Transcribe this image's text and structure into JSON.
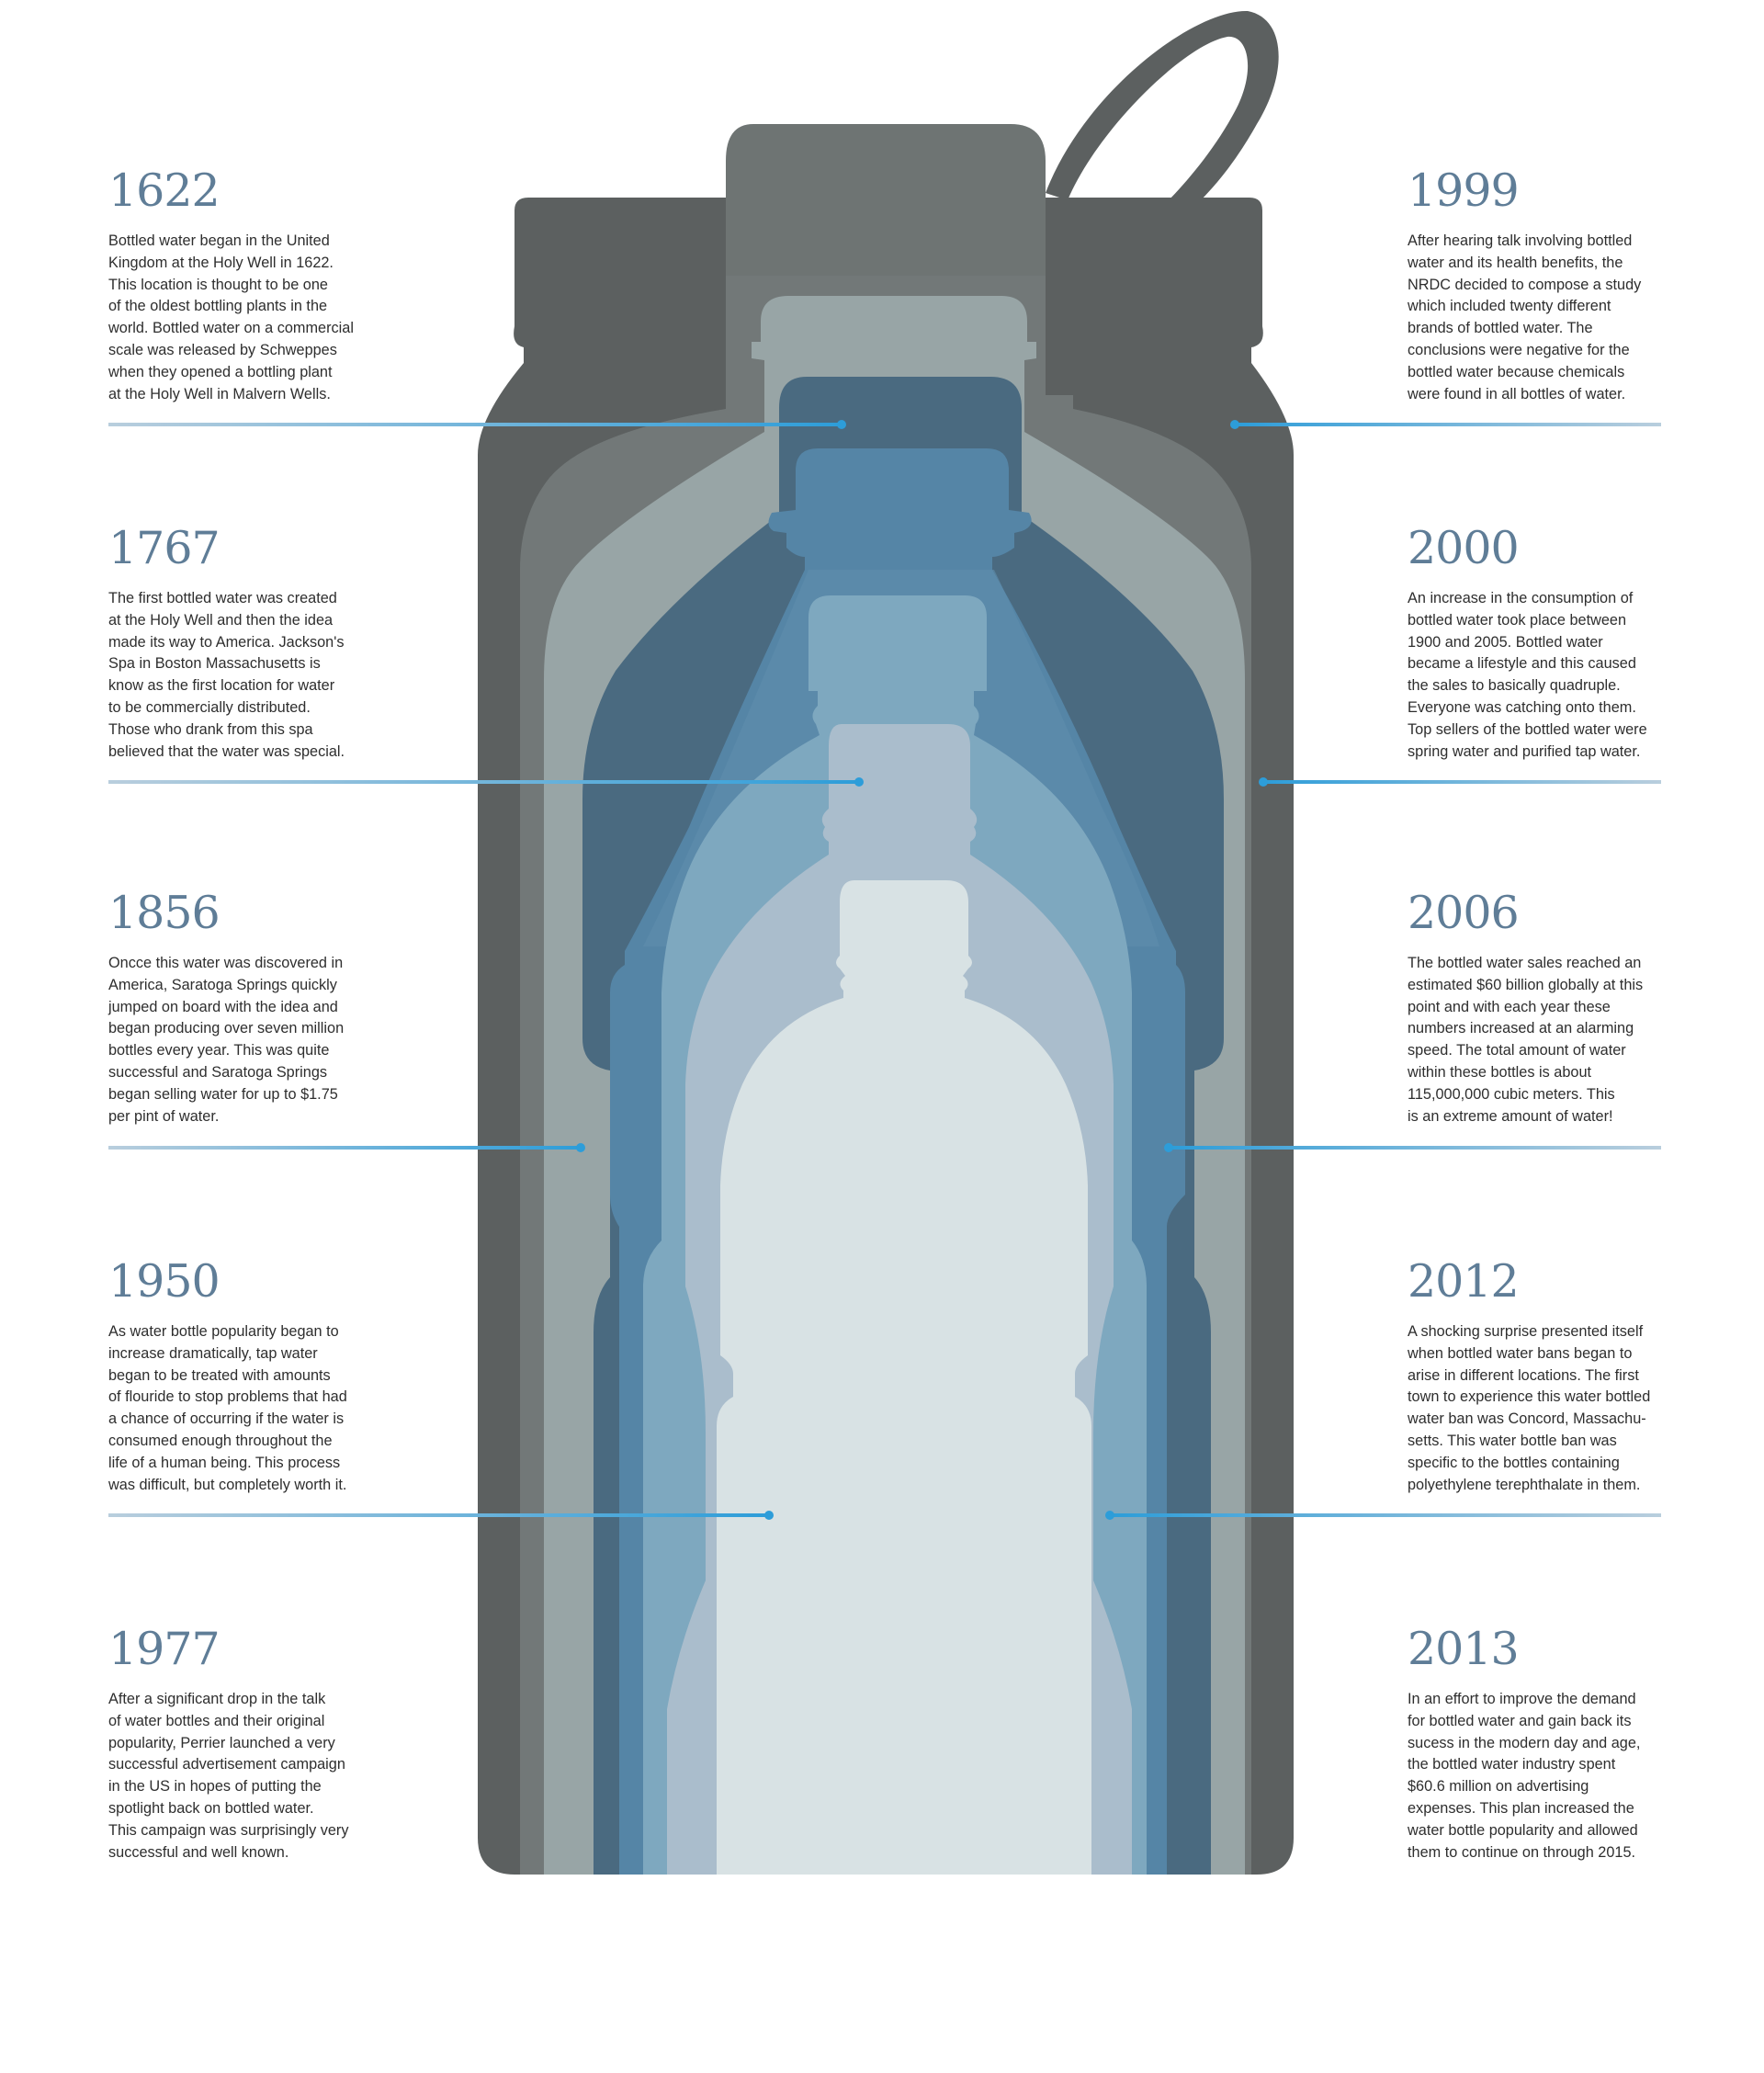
{
  "colors": {
    "year_text": "#5f7d97",
    "body_text": "#2e2e2e",
    "connector_line": "#b9cedd",
    "connector_dot": "#2d9dd9",
    "bottle_layers": [
      "#5c6060",
      "#727878",
      "#98a5a6",
      "#4a6a80",
      "#5585a6",
      "#7ea8bf",
      "#aabdcc",
      "#d8e2e4"
    ]
  },
  "left_entries": [
    {
      "year": "1622",
      "text": "Bottled water began in the United\nKingdom at the Holy Well in 1622.\nThis location is thought to be one\nof the oldest bottling plants in the\nworld. Bottled water on a commercial\nscale was released by Schweppes\nwhen they opened a bottling plant\nat the Holy Well in Malvern Wells."
    },
    {
      "year": "1767",
      "text": "The first bottled water was created\nat the Holy Well and then the idea\nmade its way to America. Jackson's\nSpa in Boston Massachusetts is\nknow as the first location for water\nto be commercially distributed.\nThose who drank from this spa\nbelieved that the water was special."
    },
    {
      "year": "1856",
      "text": "Oncce this water was discovered in\nAmerica, Saratoga Springs quickly\njumped on board with the idea and\nbegan producing over seven million\nbottles every year. This was quite\nsuccessful and Saratoga Springs\nbegan selling water for up to $1.75\nper pint of water."
    },
    {
      "year": "1950",
      "text": "As water bottle popularity began to\nincrease dramatically, tap water\nbegan to be treated with amounts\nof flouride to stop problems that had\na chance of occurring if the water is\nconsumed enough throughout the\nlife of a human being. This process\nwas difficult, but completely worth it."
    },
    {
      "year": "1977",
      "text": "After a significant drop in the talk\nof water bottles and their original\npopularity, Perrier launched a very\nsuccessful advertisement campaign\nin the US in hopes of putting the\nspotlight back on bottled water.\nThis campaign was surprisingly very\nsuccessful and well known."
    }
  ],
  "right_entries": [
    {
      "year": "1999",
      "text": "After hearing talk involving bottled\nwater and its health benefits, the\nNRDC decided to compose a study\nwhich included twenty different\nbrands of bottled water. The\nconclusions were negative for the\nbottled water because chemicals\nwere found in all bottles of water."
    },
    {
      "year": "2000",
      "text": "An increase in the consumption of\nbottled water took place between\n1900 and 2005. Bottled water\nbecame a lifestyle and this caused\nthe sales to basically quadruple.\nEveryone was catching onto them.\nTop sellers of the bottled water were\nspring water and purified tap water."
    },
    {
      "year": "2006",
      "text": "The bottled water sales reached an\nestimated $60 billion globally at this\npoint and with each year these\nnumbers increased at an alarming\nspeed. The total amount of water\nwithin these bottles is about\n115,000,000 cubic meters. This\nis an extreme amount of water!"
    },
    {
      "year": "2012",
      "text": "A shocking surprise presented itself\nwhen bottled water bans began to\narise in different locations. The first\ntown to experience this water bottled\nwater ban was Concord, Massachu-\nsetts. This water bottle ban was\nspecific to the bottles containing\npolyethylene terephthalate in them."
    },
    {
      "year": "2013",
      "text": "In an effort to improve the demand\nfor bottled water and gain back its\nsucess in the modern day and age,\nthe bottled water industry spent\n$60.6 million on advertising\nexpenses. This plan increased the\nwater bottle popularity and allowed\nthem to continue on through 2015."
    }
  ]
}
